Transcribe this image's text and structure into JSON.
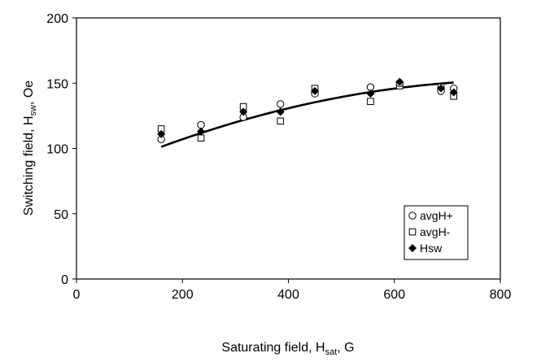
{
  "chart_data": {
    "type": "scatter",
    "title": "",
    "xlabel_main": "Saturating field, H",
    "xlabel_sub": "sat",
    "xlabel_tail": ", G",
    "ylabel_main": "Switching field, H",
    "ylabel_sub": "sw",
    "ylabel_tail": ", Oe",
    "xlim": [
      0,
      800
    ],
    "ylim": [
      0,
      200
    ],
    "xticks": [
      0,
      200,
      400,
      600,
      800
    ],
    "yticks": [
      0,
      50,
      100,
      150,
      200
    ],
    "grid": false,
    "legend_position": "bottom-right",
    "series": [
      {
        "name": "avgH+",
        "marker": "circle-open",
        "x": [
          160,
          235,
          315,
          385,
          450,
          555,
          610,
          688,
          712
        ],
        "y": [
          107,
          118,
          124,
          134,
          142,
          147,
          150,
          144,
          146
        ]
      },
      {
        "name": "avgH-",
        "marker": "square-open",
        "x": [
          160,
          235,
          315,
          385,
          450,
          555,
          610,
          688,
          712
        ],
        "y": [
          115,
          108,
          132,
          121,
          146,
          136,
          148,
          147,
          140
        ]
      },
      {
        "name": "Hsw",
        "marker": "diamond-filled",
        "x": [
          160,
          235,
          315,
          385,
          450,
          555,
          610,
          688,
          712
        ],
        "y": [
          111,
          113,
          128,
          128,
          144,
          142,
          151,
          146,
          143
        ]
      }
    ],
    "trendline": {
      "type": "polynomial-2",
      "coefficients": [
        74.6,
        0.1839,
        -0.0001086
      ],
      "x_range": [
        160,
        712
      ]
    },
    "colors": {
      "axis": "#000000",
      "marker": "#000000",
      "trendline": "#000000"
    }
  }
}
